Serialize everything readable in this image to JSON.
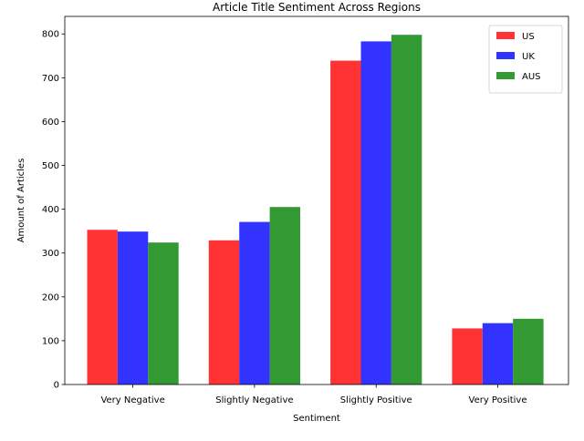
{
  "chart_data": {
    "type": "bar",
    "title": "Article Title Sentiment Across Regions",
    "xlabel": "Sentiment",
    "ylabel": "Amount of Articles",
    "categories": [
      "Very Negative",
      "Slightly Negative",
      "Slightly Positive",
      "Very Positive"
    ],
    "series": [
      {
        "name": "US",
        "color": "#ff3333",
        "values": [
          353,
          329,
          739,
          128
        ]
      },
      {
        "name": "UK",
        "color": "#3333ff",
        "values": [
          349,
          371,
          783,
          140
        ]
      },
      {
        "name": "AUS",
        "color": "#339933",
        "values": [
          324,
          405,
          798,
          150
        ]
      }
    ],
    "ylim": [
      0,
      840
    ],
    "yticks": [
      0,
      100,
      200,
      300,
      400,
      500,
      600,
      700,
      800
    ],
    "legend_position": "top-right",
    "grid": false
  }
}
